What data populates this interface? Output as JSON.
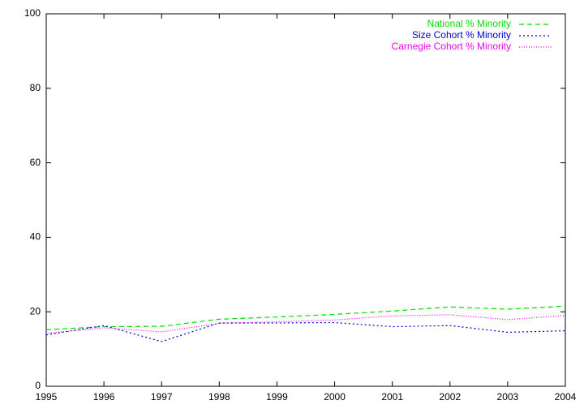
{
  "chart_data": {
    "type": "line",
    "x": [
      1995,
      1996,
      1997,
      1998,
      1999,
      2000,
      2001,
      2002,
      2003,
      2004
    ],
    "series": [
      {
        "name": "National % Minority",
        "color": "#00dd00",
        "values": [
          15.2,
          16.0,
          16.1,
          18.0,
          18.6,
          19.3,
          20.2,
          21.3,
          20.7,
          21.5
        ]
      },
      {
        "name": "Size Cohort % Minority",
        "color": "#0000cc",
        "values": [
          13.8,
          16.3,
          12.0,
          17.0,
          17.0,
          17.1,
          16.0,
          16.3,
          14.5,
          14.9
        ]
      },
      {
        "name": "Carnegie Cohort % Minority",
        "color": "#ee00ee",
        "values": [
          14.2,
          15.7,
          14.6,
          16.9,
          17.3,
          17.8,
          18.9,
          19.2,
          17.9,
          19.0
        ]
      }
    ],
    "xlim": [
      1995,
      2004
    ],
    "xticks": [
      1995,
      1996,
      1997,
      1998,
      1999,
      2000,
      2001,
      2002,
      2003,
      2004
    ],
    "ylim": [
      0,
      100
    ],
    "yticks": [
      0,
      20,
      40,
      60,
      80,
      100
    ],
    "grid": false,
    "legend": "top-right"
  }
}
